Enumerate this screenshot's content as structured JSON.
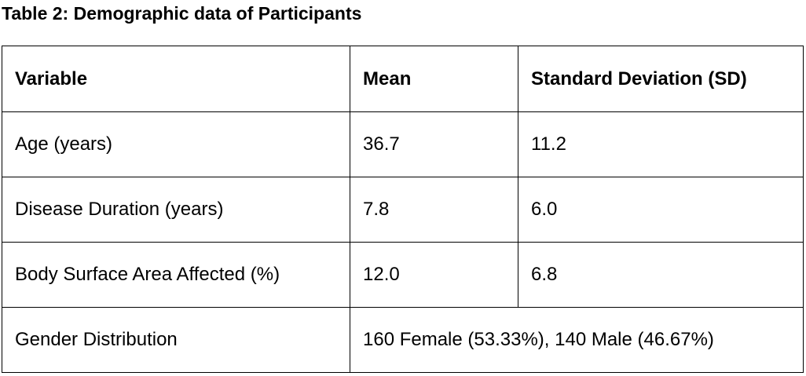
{
  "caption": "Table 2: Demographic data of Participants",
  "table": {
    "headers": [
      "Variable",
      "Mean",
      "Standard Deviation (SD)"
    ],
    "rows": [
      [
        "Age (years)",
        "36.7",
        "11.2"
      ],
      [
        "Disease Duration (years)",
        "7.8",
        "6.0"
      ],
      [
        "Body Surface Area Affected (%)",
        "12.0",
        "6.8"
      ]
    ],
    "gender_row": {
      "label": "Gender Distribution",
      "value": "160 Female (53.33%), 140 Male (46.67%)"
    }
  }
}
